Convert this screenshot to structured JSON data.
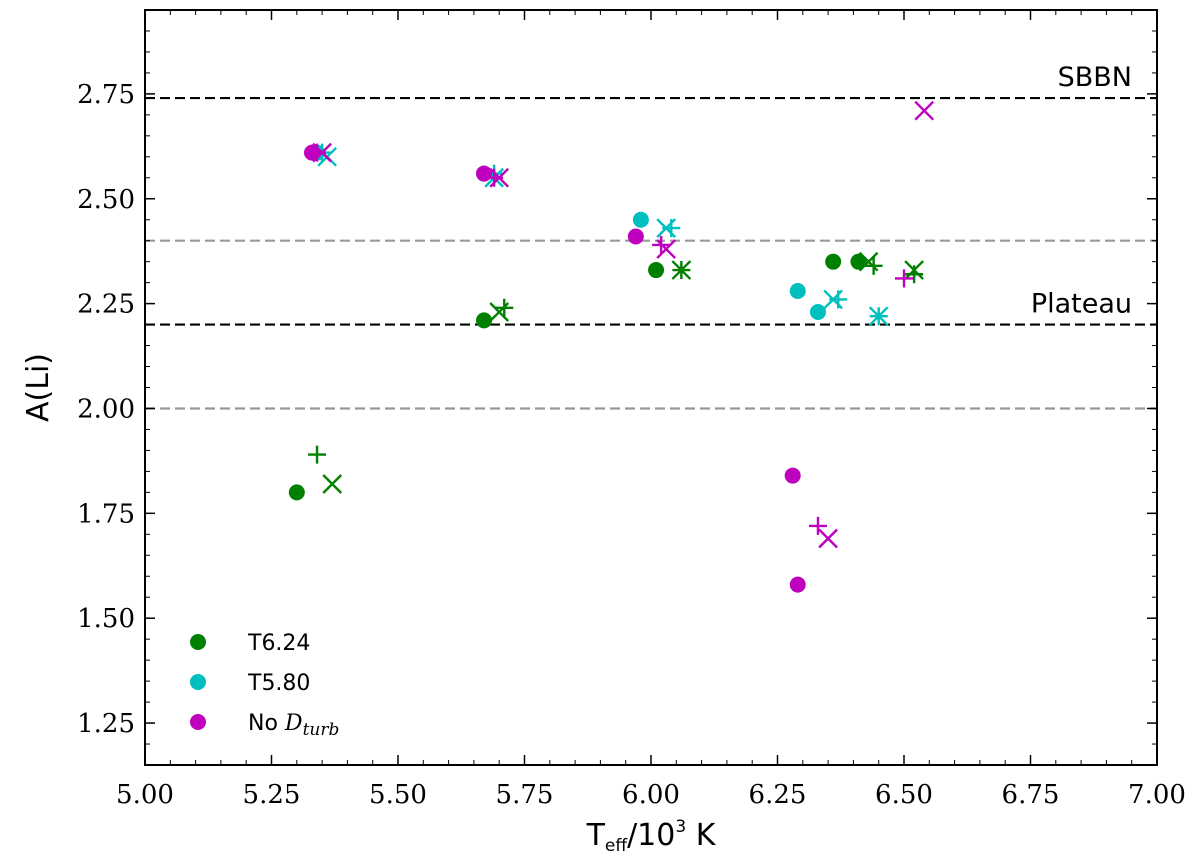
{
  "chart_data": {
    "type": "scatter",
    "xlabel": {
      "main": "T",
      "sub": "eff",
      "rest": "/10",
      "sup": "3",
      "unit": " K"
    },
    "ylabel": "A(Li)",
    "xlim": [
      5.0,
      7.0
    ],
    "ylim": [
      1.15,
      2.95
    ],
    "x_ticks": [
      "5.00",
      "5.25",
      "5.50",
      "5.75",
      "6.00",
      "6.25",
      "6.50",
      "6.75",
      "7.00"
    ],
    "y_ticks": [
      "1.25",
      "1.50",
      "1.75",
      "2.00",
      "2.25",
      "2.50",
      "2.75"
    ],
    "reference_lines": [
      {
        "name": "SBBN",
        "y": 2.74,
        "color": "#000000",
        "label": "SBBN"
      },
      {
        "name": "upper-gray",
        "y": 2.4,
        "color": "#999999",
        "label": ""
      },
      {
        "name": "Plateau",
        "y": 2.2,
        "color": "#000000",
        "label": "Plateau"
      },
      {
        "name": "lower-gray",
        "y": 2.0,
        "color": "#999999",
        "label": ""
      }
    ],
    "series": [
      {
        "name": "T6.24",
        "color": "#008000",
        "circle": [
          [
            5.3,
            1.8
          ],
          [
            5.67,
            2.21
          ],
          [
            6.01,
            2.33
          ],
          [
            6.36,
            2.35
          ],
          [
            6.41,
            2.35
          ]
        ],
        "plus": [
          [
            5.34,
            1.89
          ],
          [
            5.71,
            2.24
          ],
          [
            6.06,
            2.33
          ],
          [
            6.44,
            2.34
          ],
          [
            6.52,
            2.32
          ]
        ],
        "cross": [
          [
            5.37,
            1.82
          ],
          [
            5.7,
            2.23
          ],
          [
            6.06,
            2.33
          ],
          [
            6.43,
            2.35
          ],
          [
            6.52,
            2.33
          ]
        ]
      },
      {
        "name": "T5.80",
        "color": "#00bfbf",
        "circle": [
          [
            5.34,
            2.61
          ],
          [
            5.67,
            2.56
          ],
          [
            5.98,
            2.45
          ],
          [
            6.29,
            2.28
          ],
          [
            6.33,
            2.23
          ]
        ],
        "plus": [
          [
            5.35,
            2.61
          ],
          [
            5.69,
            2.56
          ],
          [
            6.04,
            2.43
          ],
          [
            6.37,
            2.26
          ],
          [
            6.45,
            2.22
          ]
        ],
        "cross": [
          [
            5.36,
            2.6
          ],
          [
            5.69,
            2.55
          ],
          [
            6.03,
            2.43
          ],
          [
            6.36,
            2.26
          ],
          [
            6.45,
            2.22
          ]
        ]
      },
      {
        "name": "No D_turb",
        "color": "#bf00bf",
        "circle": [
          [
            5.33,
            2.61
          ],
          [
            5.67,
            2.56
          ],
          [
            5.97,
            2.41
          ],
          [
            6.28,
            1.84
          ],
          [
            6.29,
            1.58
          ]
        ],
        "plus": [
          [
            5.34,
            2.61
          ],
          [
            5.69,
            2.55
          ],
          [
            6.02,
            2.39
          ],
          [
            6.33,
            1.72
          ],
          [
            6.5,
            2.31
          ]
        ],
        "cross": [
          [
            5.35,
            2.61
          ],
          [
            5.7,
            2.55
          ],
          [
            6.03,
            2.38
          ],
          [
            6.35,
            1.69
          ],
          [
            6.54,
            2.71
          ]
        ]
      }
    ],
    "legend": {
      "position": "lower-left",
      "entries": [
        {
          "series": "T6.24",
          "label": "T6.24",
          "color": "#008000"
        },
        {
          "series": "T5.80",
          "label": "T5.80",
          "color": "#00bfbf"
        },
        {
          "series": "No D_turb",
          "label_prefix": "No ",
          "label_italic": "D",
          "label_sub": "turb",
          "color": "#bf00bf"
        }
      ]
    }
  }
}
